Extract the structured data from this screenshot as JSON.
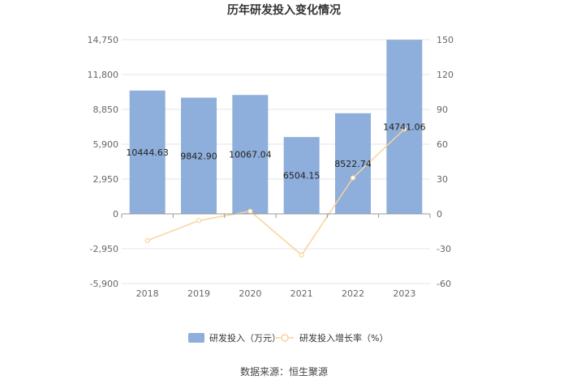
{
  "chart_data": {
    "type": "bar",
    "title": "历年研发投入变化情况",
    "categories": [
      "2018",
      "2019",
      "2020",
      "2021",
      "2022",
      "2023"
    ],
    "series": [
      {
        "name": "研发投入（万元）",
        "type": "bar",
        "axis": "left",
        "values": [
          10444.63,
          9842.9,
          10067.04,
          6504.15,
          8522.74,
          14741.06
        ],
        "data_labels": [
          "10444.63",
          "9842.90",
          "10067.04",
          "6504.15",
          "8522.74",
          "14741.06"
        ],
        "color": "#8eaedb"
      },
      {
        "name": "研发投入增长率（%）",
        "type": "line",
        "axis": "right",
        "values": [
          -23,
          -5.8,
          2.3,
          -35.4,
          31,
          73
        ],
        "color": "#f8d49a"
      }
    ],
    "left_axis": {
      "ylim": [
        -5900,
        14750
      ],
      "ticks": [
        14750,
        11800,
        8850,
        5900,
        2950,
        0,
        -2950,
        -5900
      ],
      "tick_labels": [
        "14,750",
        "11,800",
        "8,850",
        "5,900",
        "2,950",
        "0",
        "-2,950",
        "-5,900"
      ]
    },
    "right_axis": {
      "ylim": [
        -60,
        150
      ],
      "ticks": [
        150,
        120,
        90,
        60,
        30,
        0,
        -30,
        -60
      ],
      "tick_labels": [
        "150",
        "120",
        "90",
        "60",
        "30",
        "0",
        "-30",
        "-60"
      ]
    },
    "grid": true,
    "legend_position": "bottom"
  },
  "source": "数据来源：恒生聚源"
}
